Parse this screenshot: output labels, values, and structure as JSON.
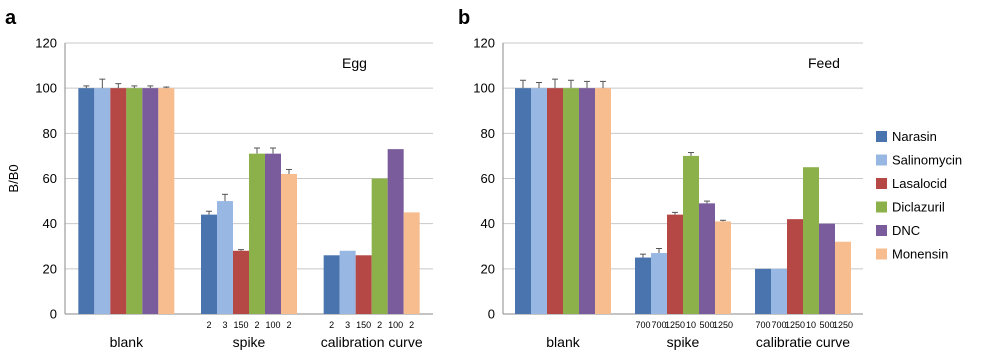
{
  "chart_data": [
    {
      "type": "bar",
      "panel": "a",
      "title": "",
      "annotation": "Egg",
      "ylabel": "B/B0",
      "xlabel": "",
      "ylim": [
        0,
        120
      ],
      "yticks": [
        0,
        20,
        40,
        60,
        80,
        100,
        120
      ],
      "grid": true,
      "categories": [
        "blank",
        "spike",
        "calibration curve"
      ],
      "sublabels": [
        [
          "",
          "",
          "",
          "",
          "",
          ""
        ],
        [
          "2",
          "3",
          "150",
          "2",
          "100",
          "2"
        ],
        [
          "2",
          "3",
          "150",
          "2",
          "100",
          "2"
        ]
      ],
      "series": [
        {
          "name": "Narasin",
          "values": [
            100,
            44,
            26
          ],
          "errors": [
            1,
            1.5,
            0
          ]
        },
        {
          "name": "Salinomycin",
          "values": [
            100,
            50,
            28
          ],
          "errors": [
            4,
            3,
            0
          ]
        },
        {
          "name": "Lasalocid",
          "values": [
            100,
            28,
            26
          ],
          "errors": [
            2,
            0.5,
            0
          ]
        },
        {
          "name": "Diclazuril",
          "values": [
            100,
            71,
            60
          ],
          "errors": [
            1,
            2.5,
            0
          ]
        },
        {
          "name": "DNC",
          "values": [
            100,
            71,
            73
          ],
          "errors": [
            1,
            2.5,
            0
          ]
        },
        {
          "name": "Monensin",
          "values": [
            100,
            62,
            45
          ],
          "errors": [
            0.5,
            2,
            0
          ]
        }
      ]
    },
    {
      "type": "bar",
      "panel": "b",
      "title": "",
      "annotation": "Feed",
      "ylabel": "",
      "xlabel": "",
      "ylim": [
        0,
        120
      ],
      "yticks": [
        0,
        20,
        40,
        60,
        80,
        100,
        120
      ],
      "grid": true,
      "categories": [
        "blank",
        "spike",
        "calibratie curve"
      ],
      "sublabels": [
        [
          "",
          "",
          "",
          "",
          "",
          ""
        ],
        [
          "700",
          "700",
          "1250",
          "10",
          "500",
          "1250"
        ],
        [
          "700",
          "700",
          "1250",
          "10",
          "500",
          "1250"
        ]
      ],
      "series": [
        {
          "name": "Narasin",
          "values": [
            100,
            25,
            20
          ],
          "errors": [
            3.5,
            1.5,
            0
          ]
        },
        {
          "name": "Salinomycin",
          "values": [
            100,
            27,
            20
          ],
          "errors": [
            2.5,
            2,
            0
          ]
        },
        {
          "name": "Lasalocid",
          "values": [
            100,
            44,
            42
          ],
          "errors": [
            4,
            1,
            0
          ]
        },
        {
          "name": "Diclazuril",
          "values": [
            100,
            70,
            65
          ],
          "errors": [
            3.5,
            1.5,
            0
          ]
        },
        {
          "name": "DNC",
          "values": [
            100,
            49,
            40
          ],
          "errors": [
            3,
            1,
            0
          ]
        },
        {
          "name": "Monensin",
          "values": [
            100,
            41,
            32
          ],
          "errors": [
            3,
            0.5,
            0
          ]
        }
      ]
    }
  ],
  "legend": {
    "placement": "right",
    "items": [
      "Narasin",
      "Salinomycin",
      "Lasalocid",
      "Diclazuril",
      "DNC",
      "Monensin"
    ]
  },
  "colors": {
    "Narasin": "#4a74ae",
    "Salinomycin": "#98b8e3",
    "Lasalocid": "#b54745",
    "Diclazuril": "#8cb04a",
    "DNC": "#7a5c9c",
    "Monensin": "#f8bd8e",
    "grid": "#c8c8c8",
    "axis": "#8a8a8a",
    "errorbar": "#555555"
  }
}
